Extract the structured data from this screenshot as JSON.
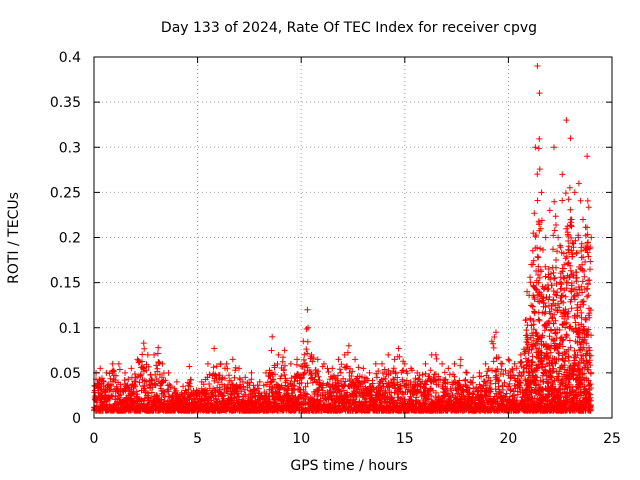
{
  "chart_data": {
    "type": "scatter",
    "title": "Day 133 of 2024, Rate Of TEC Index for receiver cpvg",
    "xlabel": "GPS time / hours",
    "ylabel": "ROTI / TECUs",
    "xlim": [
      0,
      25
    ],
    "ylim": [
      0,
      0.4
    ],
    "xticks": [
      "0",
      "5",
      "10",
      "15",
      "20",
      "25"
    ],
    "yticks": [
      "0",
      "0.05",
      "0.1",
      "0.15",
      "0.2",
      "0.25",
      "0.3",
      "0.35",
      "0.4"
    ],
    "grid": true,
    "marker": "+",
    "color": "#ff0000",
    "series": [
      {
        "points": [
          [
            0.1,
            0.05
          ],
          [
            0.3,
            0.055
          ],
          [
            0.6,
            0.05
          ],
          [
            0.9,
            0.06
          ],
          [
            1.2,
            0.06
          ],
          [
            1.5,
            0.05
          ],
          [
            1.8,
            0.055
          ],
          [
            2.1,
            0.065
          ],
          [
            2.4,
            0.083
          ],
          [
            2.6,
            0.07
          ],
          [
            2.9,
            0.07
          ],
          [
            3.1,
            0.078
          ],
          [
            3.3,
            0.06
          ],
          [
            3.6,
            0.05
          ],
          [
            4.0,
            0.04
          ],
          [
            4.3,
            0.035
          ],
          [
            4.6,
            0.057
          ],
          [
            4.8,
            0.03
          ],
          [
            5.2,
            0.04
          ],
          [
            5.5,
            0.06
          ],
          [
            5.8,
            0.077
          ],
          [
            6.1,
            0.06
          ],
          [
            6.4,
            0.06
          ],
          [
            6.7,
            0.065
          ],
          [
            7.0,
            0.055
          ],
          [
            7.3,
            0.045
          ],
          [
            7.6,
            0.05
          ],
          [
            8.0,
            0.04
          ],
          [
            8.3,
            0.05
          ],
          [
            8.6,
            0.09
          ],
          [
            8.9,
            0.07
          ],
          [
            9.2,
            0.075
          ],
          [
            9.5,
            0.06
          ],
          [
            9.8,
            0.065
          ],
          [
            10.1,
            0.085
          ],
          [
            10.3,
            0.12
          ],
          [
            10.5,
            0.07
          ],
          [
            10.8,
            0.065
          ],
          [
            11.1,
            0.06
          ],
          [
            11.5,
            0.055
          ],
          [
            11.8,
            0.065
          ],
          [
            12.1,
            0.07
          ],
          [
            12.3,
            0.08
          ],
          [
            12.6,
            0.065
          ],
          [
            13.0,
            0.055
          ],
          [
            13.3,
            0.05
          ],
          [
            13.6,
            0.06
          ],
          [
            13.9,
            0.06
          ],
          [
            14.2,
            0.07
          ],
          [
            14.5,
            0.065
          ],
          [
            14.7,
            0.077
          ],
          [
            15.0,
            0.06
          ],
          [
            15.3,
            0.055
          ],
          [
            15.6,
            0.05
          ],
          [
            16.0,
            0.06
          ],
          [
            16.3,
            0.07
          ],
          [
            16.5,
            0.07
          ],
          [
            16.8,
            0.06
          ],
          [
            17.1,
            0.055
          ],
          [
            17.4,
            0.06
          ],
          [
            17.7,
            0.065
          ],
          [
            18.0,
            0.05
          ],
          [
            18.3,
            0.045
          ],
          [
            18.6,
            0.05
          ],
          [
            18.9,
            0.06
          ],
          [
            19.2,
            0.085
          ],
          [
            19.4,
            0.095
          ],
          [
            19.7,
            0.06
          ],
          [
            20.0,
            0.065
          ],
          [
            20.3,
            0.06
          ],
          [
            20.6,
            0.07
          ],
          [
            20.9,
            0.14
          ],
          [
            21.1,
            0.17
          ],
          [
            21.3,
            0.3
          ],
          [
            21.4,
            0.39
          ],
          [
            21.5,
            0.36
          ],
          [
            21.6,
            0.25
          ],
          [
            21.8,
            0.2
          ],
          [
            22.0,
            0.23
          ],
          [
            22.2,
            0.3
          ],
          [
            22.4,
            0.2
          ],
          [
            22.6,
            0.27
          ],
          [
            22.8,
            0.33
          ],
          [
            23.0,
            0.31
          ],
          [
            23.2,
            0.25
          ],
          [
            23.4,
            0.26
          ],
          [
            23.6,
            0.22
          ],
          [
            23.8,
            0.29
          ],
          [
            24.0,
            0.2
          ]
        ]
      }
    ]
  }
}
